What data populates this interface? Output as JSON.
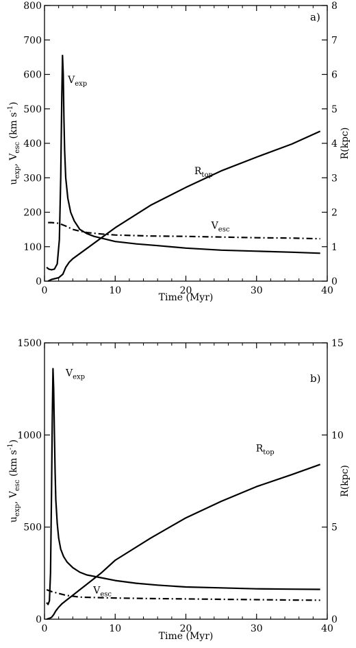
{
  "chart_data": [
    {
      "type": "line",
      "panel_label": "a)",
      "xlabel": "Time (Myr)",
      "ylabel": {
        "main": "u",
        "sub1": "exp",
        "mid": ", V",
        "sub2": "esc",
        "tail": " (km s",
        "sup": "-1",
        "end": ")"
      },
      "y2label": "R(kpc)",
      "xlim": [
        0,
        40
      ],
      "ylim": [
        0,
        800
      ],
      "y2lim": [
        0,
        8
      ],
      "x_ticks": [
        "0",
        "10",
        "20",
        "30",
        "40"
      ],
      "y_ticks": [
        "0",
        "100",
        "200",
        "300",
        "400",
        "500",
        "600",
        "700",
        "800"
      ],
      "y2_ticks": [
        "0",
        "1",
        "2",
        "3",
        "4",
        "5",
        "6",
        "7",
        "8"
      ],
      "curve_labels": {
        "vexp": {
          "main": "V",
          "sub": "exp"
        },
        "rtop": {
          "main": "R",
          "sub": "top"
        },
        "vesc": {
          "main": "V",
          "sub": "esc"
        }
      },
      "series": [
        {
          "name": "Vexp",
          "axis": "left",
          "style": "solid",
          "x": [
            0.3,
            0.6,
            1.0,
            1.4,
            1.8,
            2.1,
            2.3,
            2.45,
            2.55,
            2.65,
            2.75,
            2.85,
            3.0,
            3.3,
            3.7,
            4.2,
            5.0,
            6.0,
            7.0,
            8.0,
            10,
            13,
            16,
            20,
            25,
            30,
            35,
            39
          ],
          "y": [
            40,
            35,
            33,
            35,
            50,
            120,
            300,
            540,
            655,
            600,
            470,
            380,
            300,
            240,
            200,
            175,
            150,
            138,
            130,
            125,
            115,
            108,
            103,
            96,
            90,
            87,
            84,
            81
          ]
        },
        {
          "name": "Vesc",
          "axis": "left",
          "style": "dashdot",
          "x": [
            0.5,
            1,
            2,
            3,
            4,
            5,
            6,
            8,
            10,
            15,
            20,
            25,
            30,
            35,
            39
          ],
          "y": [
            170,
            170,
            168,
            160,
            150,
            145,
            141,
            137,
            134,
            131,
            130,
            128,
            126,
            125,
            123
          ]
        },
        {
          "name": "Rtop",
          "axis": "right",
          "style": "solid",
          "x": [
            0.5,
            1,
            2,
            2.6,
            3.0,
            3.5,
            4,
            5,
            6,
            8,
            10,
            15,
            20,
            25,
            30,
            35,
            39
          ],
          "y": [
            0.0,
            0.05,
            0.1,
            0.2,
            0.4,
            0.55,
            0.65,
            0.8,
            0.95,
            1.25,
            1.55,
            2.2,
            2.72,
            3.2,
            3.6,
            3.98,
            4.35
          ]
        }
      ]
    },
    {
      "type": "line",
      "panel_label": "b)",
      "xlabel": "Time (Myr)",
      "ylabel": {
        "main": "u",
        "sub1": "exp",
        "mid": ", V",
        "sub2": "esc",
        "tail": " (km s",
        "sup": "-1",
        "end": ")"
      },
      "y2label": "R(kpc)",
      "xlim": [
        0,
        40
      ],
      "ylim": [
        0,
        1500
      ],
      "y2lim": [
        0,
        15
      ],
      "x_ticks": [
        "0",
        "10",
        "20",
        "30",
        "40"
      ],
      "y_ticks": [
        "0",
        "500",
        "1000",
        "1500"
      ],
      "y2_ticks": [
        "0",
        "5",
        "10",
        "15"
      ],
      "curve_labels": {
        "vexp": {
          "main": "V",
          "sub": "exp"
        },
        "rtop": {
          "main": "R",
          "sub": "top"
        },
        "vesc": {
          "main": "V",
          "sub": "esc"
        }
      },
      "series": [
        {
          "name": "Vexp",
          "axis": "left",
          "style": "solid",
          "x": [
            0.3,
            0.5,
            0.7,
            0.85,
            1.0,
            1.1,
            1.2,
            1.3,
            1.4,
            1.5,
            1.6,
            1.8,
            2.0,
            2.3,
            2.7,
            3.2,
            4.0,
            5.0,
            6.0,
            8.0,
            10,
            13,
            16,
            20,
            25,
            30,
            35,
            39
          ],
          "y": [
            90,
            80,
            100,
            250,
            700,
            1100,
            1360,
            1250,
            1000,
            800,
            650,
            520,
            440,
            380,
            340,
            310,
            280,
            255,
            240,
            225,
            210,
            195,
            185,
            175,
            170,
            165,
            163,
            162
          ]
        },
        {
          "name": "Vesc",
          "axis": "left",
          "style": "dashdot",
          "x": [
            0.3,
            1,
            2,
            3,
            5,
            8,
            10,
            15,
            20,
            25,
            30,
            35,
            39
          ],
          "y": [
            160,
            150,
            140,
            130,
            120,
            117,
            115,
            112,
            110,
            108,
            106,
            104,
            103
          ]
        },
        {
          "name": "Rtop",
          "axis": "right",
          "style": "solid",
          "x": [
            0.3,
            0.7,
            1.0,
            1.3,
            1.6,
            2.0,
            2.5,
            3,
            4,
            5,
            6,
            8,
            10,
            15,
            20,
            25,
            30,
            35,
            39
          ],
          "y": [
            0.0,
            0.05,
            0.1,
            0.25,
            0.45,
            0.65,
            0.85,
            1.0,
            1.3,
            1.6,
            1.9,
            2.5,
            3.2,
            4.4,
            5.5,
            6.4,
            7.2,
            7.85,
            8.4
          ]
        }
      ]
    }
  ]
}
